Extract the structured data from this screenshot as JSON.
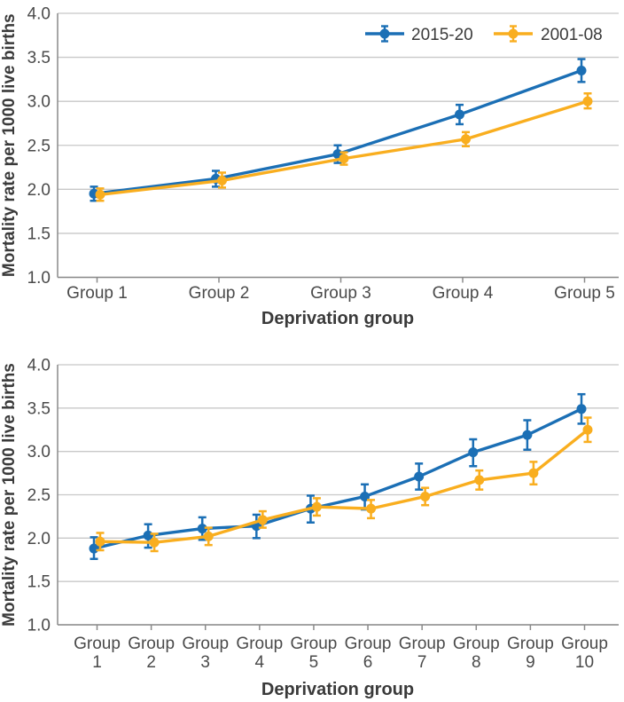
{
  "figure": {
    "description": "Two line charts of infant mortality by deprivation group with 95% confidence interval error bars",
    "legend": [
      {
        "label": "2015-20",
        "color": "#1B6FB5"
      },
      {
        "label": "2001-08",
        "color": "#F9AE1F"
      }
    ]
  },
  "colors": {
    "series_2015_20": "#1B6FB5",
    "series_2001_08": "#F9AE1F",
    "grid": "#C8C8C8",
    "axis": "#8A8A8A",
    "tick_text": "#4A4A4A",
    "title_text": "#3A3A3A",
    "legend_text": "#3A3A3A",
    "background": "#FFFFFF"
  },
  "chart_data": [
    {
      "type": "line",
      "title": "",
      "xlabel": "Deprivation group",
      "ylabel": "Mortality rate per 1000 live births",
      "ylim": [
        1.0,
        4.0
      ],
      "yticks": [
        4.0,
        3.5,
        3.0,
        2.5,
        2.0,
        1.5,
        1.0
      ],
      "grid": "horizontal",
      "legend_position": "top-right-inside",
      "categories": [
        "Group 1",
        "Group 2",
        "Group 3",
        "Group 4",
        "Group 5"
      ],
      "series": [
        {
          "name": "2015-20",
          "color": "#1B6FB5",
          "values": [
            1.95,
            2.12,
            2.4,
            2.85,
            3.35
          ],
          "ci_low": [
            1.87,
            2.03,
            2.3,
            2.74,
            3.22
          ],
          "ci_high": [
            2.03,
            2.21,
            2.5,
            2.96,
            3.48
          ]
        },
        {
          "name": "2001-08",
          "color": "#F9AE1F",
          "values": [
            1.94,
            2.1,
            2.35,
            2.57,
            3.0
          ],
          "ci_low": [
            1.87,
            2.02,
            2.28,
            2.49,
            2.92
          ],
          "ci_high": [
            2.01,
            2.19,
            2.42,
            2.65,
            3.09
          ]
        }
      ]
    },
    {
      "type": "line",
      "title": "",
      "xlabel": "Deprivation group",
      "ylabel": "Mortality rate per 1000 live births",
      "ylim": [
        1.0,
        4.0
      ],
      "yticks": [
        4.0,
        3.5,
        3.0,
        2.5,
        2.0,
        1.5,
        1.0
      ],
      "grid": "horizontal",
      "legend_position": "none",
      "categories": [
        "Group 1",
        "Group 2",
        "Group 3",
        "Group 4",
        "Group 5",
        "Group 6",
        "Group 7",
        "Group 8",
        "Group 9",
        "Group 10"
      ],
      "series": [
        {
          "name": "2015-20",
          "color": "#1B6FB5",
          "values": [
            1.88,
            2.03,
            2.11,
            2.14,
            2.34,
            2.48,
            2.71,
            2.99,
            3.19,
            3.49
          ],
          "ci_low": [
            1.76,
            1.89,
            1.98,
            2.0,
            2.18,
            2.33,
            2.56,
            2.83,
            3.02,
            3.32
          ],
          "ci_high": [
            2.01,
            2.16,
            2.24,
            2.27,
            2.49,
            2.62,
            2.86,
            3.14,
            3.36,
            3.66
          ]
        },
        {
          "name": "2001-08",
          "color": "#F9AE1F",
          "values": [
            1.96,
            1.95,
            2.02,
            2.21,
            2.36,
            2.34,
            2.48,
            2.67,
            2.75,
            3.25
          ],
          "ci_low": [
            1.86,
            1.85,
            1.92,
            2.12,
            2.26,
            2.23,
            2.38,
            2.56,
            2.62,
            3.11
          ],
          "ci_high": [
            2.06,
            2.05,
            2.12,
            2.31,
            2.46,
            2.44,
            2.58,
            2.78,
            2.88,
            3.39
          ]
        }
      ]
    }
  ]
}
